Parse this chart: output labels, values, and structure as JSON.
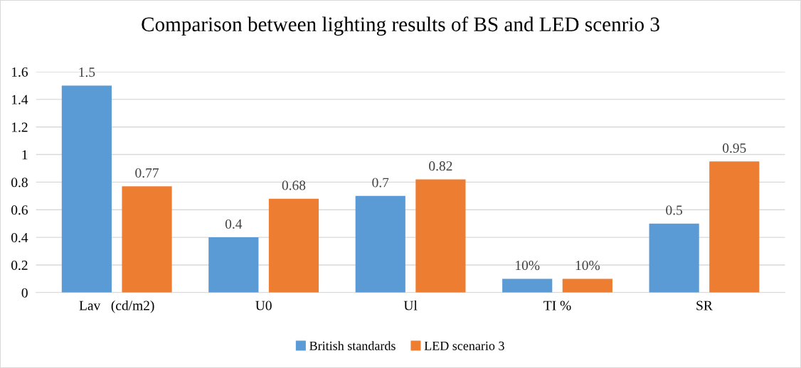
{
  "chart_data": {
    "type": "bar",
    "title": "Comparison between lighting results of BS and LED scenrio 3",
    "categories": [
      "Lav   (cd/m2)",
      "U0",
      "Ul",
      "TI %",
      "SR"
    ],
    "series": [
      {
        "name": "British standards",
        "color": "#5b9bd5",
        "values": [
          1.5,
          0.4,
          0.7,
          0.1,
          0.5
        ],
        "value_labels": [
          "1.5",
          "0.4",
          "0.7",
          "10%",
          "0.5"
        ]
      },
      {
        "name": "LED scenario 3",
        "color": "#ed7d31",
        "values": [
          0.77,
          0.68,
          0.82,
          0.1,
          0.95
        ],
        "value_labels": [
          "0.77",
          "0.68",
          "0.82",
          "10%",
          "0.95"
        ]
      }
    ],
    "ylim": [
      0,
      1.6
    ],
    "yticks": [
      0,
      0.2,
      0.4,
      0.6,
      0.8,
      1,
      1.2,
      1.4,
      1.6
    ],
    "grid": "y",
    "legend": "bottom"
  }
}
